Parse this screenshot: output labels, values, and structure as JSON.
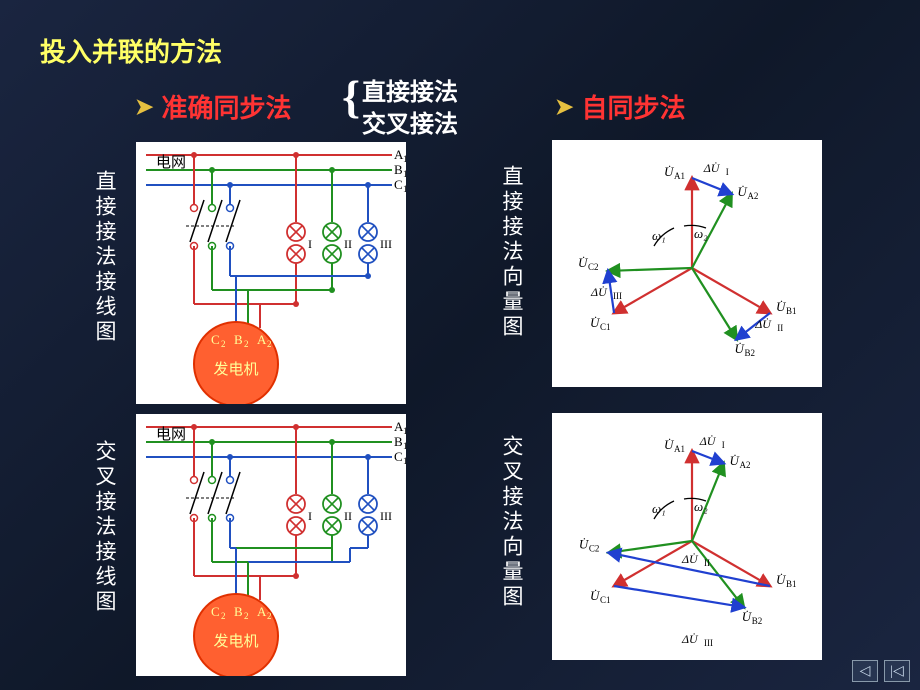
{
  "title": {
    "text": "投入并联的方法",
    "color": "#ffff66"
  },
  "bullet1": {
    "arrow_color": "#e6c040",
    "text": "准确同步法",
    "text_color": "#ff3333"
  },
  "bullet2": {
    "arrow_color": "#e6c040",
    "text": "自同步法",
    "text_color": "#ff3333"
  },
  "brace": {
    "color": "#ffffff"
  },
  "brace_items": {
    "item1": "直接接法",
    "item2": "交叉接法",
    "color": "#ffffff"
  },
  "vlabels": {
    "vl1": "直接接法接线图",
    "vl2": "直接接法向量图",
    "vl3": "交叉接法接线图",
    "vl4": "交叉接法向量图"
  },
  "wiring": {
    "grid_label": "电网",
    "phase_labels": [
      "A",
      "B",
      "C"
    ],
    "gen_label": "发电机",
    "gen_phases": [
      "C",
      "B",
      "A"
    ],
    "lamp_labels": [
      "I",
      "II",
      "III"
    ],
    "colors": {
      "A": "#d03030",
      "B": "#209020",
      "C": "#2050c0",
      "gen_fill": "#ff6030",
      "gen_stroke": "#e03000",
      "lamp_fill": "#ffffff",
      "lamp_stroke_I": "#d03030",
      "lamp_stroke_II": "#209020",
      "lamp_stroke_III": "#2050c0"
    }
  },
  "phasor": {
    "colors": {
      "grid": "#d03030",
      "gen": "#209020",
      "delta": "#2040d0",
      "arc": "#000000"
    },
    "labels": {
      "UA1": "U̇_A1",
      "UA2": "U̇_A2",
      "UB1": "U̇_B1",
      "UB2": "U̇_B2",
      "UC1": "U̇_C1",
      "UC2": "U̇_C2",
      "dU1": "ΔU̇_I",
      "dU2": "ΔU̇_II",
      "dU3": "ΔU̇_III",
      "w1": "ω₁",
      "w2": "ω₂"
    }
  }
}
